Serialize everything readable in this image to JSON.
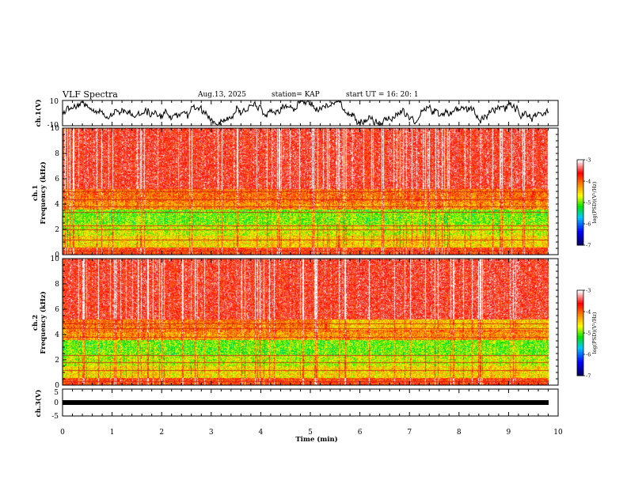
{
  "chart_data": [
    {
      "type": "line",
      "id": "ch1-waveform",
      "title": "VLF Spectra",
      "header": {
        "date": "Aug.13, 2025",
        "station": "station= KAP",
        "start": "start  UT =   16: 20: 1"
      },
      "ylabel": "ch.1(V)",
      "yticks": [
        "10",
        "-10"
      ],
      "ylim": [
        -10,
        10
      ],
      "xlim": [
        0,
        10
      ]
    },
    {
      "type": "heatmap",
      "id": "ch1-spectrogram",
      "ylabel": "ch.1\nFrequency (kHz)",
      "ylabel_lines": [
        "ch.1",
        "Frequency (kHz)"
      ],
      "yticks": [
        "0",
        "2",
        "4",
        "6",
        "8",
        "10"
      ],
      "ylim": [
        0,
        10
      ],
      "xlim": [
        0,
        9.85
      ],
      "colorbar": {
        "label": "log(PSD)(V²/Hz)",
        "ticks": [
          "-3",
          "-4",
          "-5",
          "-6",
          "-7"
        ],
        "range": [
          -7,
          -3
        ]
      },
      "bands_khz": [
        0.3,
        1.2,
        2.0,
        2.3,
        3.4,
        3.8,
        4.4,
        5.0
      ]
    },
    {
      "type": "heatmap",
      "id": "ch2-spectrogram",
      "ylabel": "ch.2\nFrequency (kHz)",
      "ylabel_lines": [
        "ch.2",
        "Frequency (kHz)"
      ],
      "yticks": [
        "0",
        "2",
        "4",
        "6",
        "8",
        "10"
      ],
      "ylim": [
        0,
        10
      ],
      "xlim": [
        0,
        9.85
      ],
      "colorbar": {
        "label": "log(PSD)(V²/Hz)",
        "ticks": [
          "-3",
          "-4",
          "-5",
          "-6",
          "-7"
        ],
        "range": [
          -7,
          -3
        ]
      },
      "bands_khz": [
        0.3,
        1.2,
        1.8,
        2.4,
        3.8,
        4.5,
        4.9
      ]
    },
    {
      "type": "line",
      "id": "ch3-waveform",
      "ylabel": "ch.3(V)",
      "yticks": [
        "5",
        "0",
        "-5"
      ],
      "ylim": [
        -5,
        5
      ],
      "xlabel": "Time (min)",
      "xticks": [
        "0",
        "1",
        "2",
        "3",
        "4",
        "5",
        "6",
        "7",
        "8",
        "9",
        "10"
      ],
      "xlim": [
        0,
        10
      ],
      "level": 0
    }
  ],
  "colors": {
    "frame": "#000000",
    "scale": [
      "#000066",
      "#0000ff",
      "#00c8ff",
      "#00e400",
      "#ffff00",
      "#ff7f00",
      "#ff0000",
      "#ffb0b0",
      "#ffffff"
    ]
  }
}
